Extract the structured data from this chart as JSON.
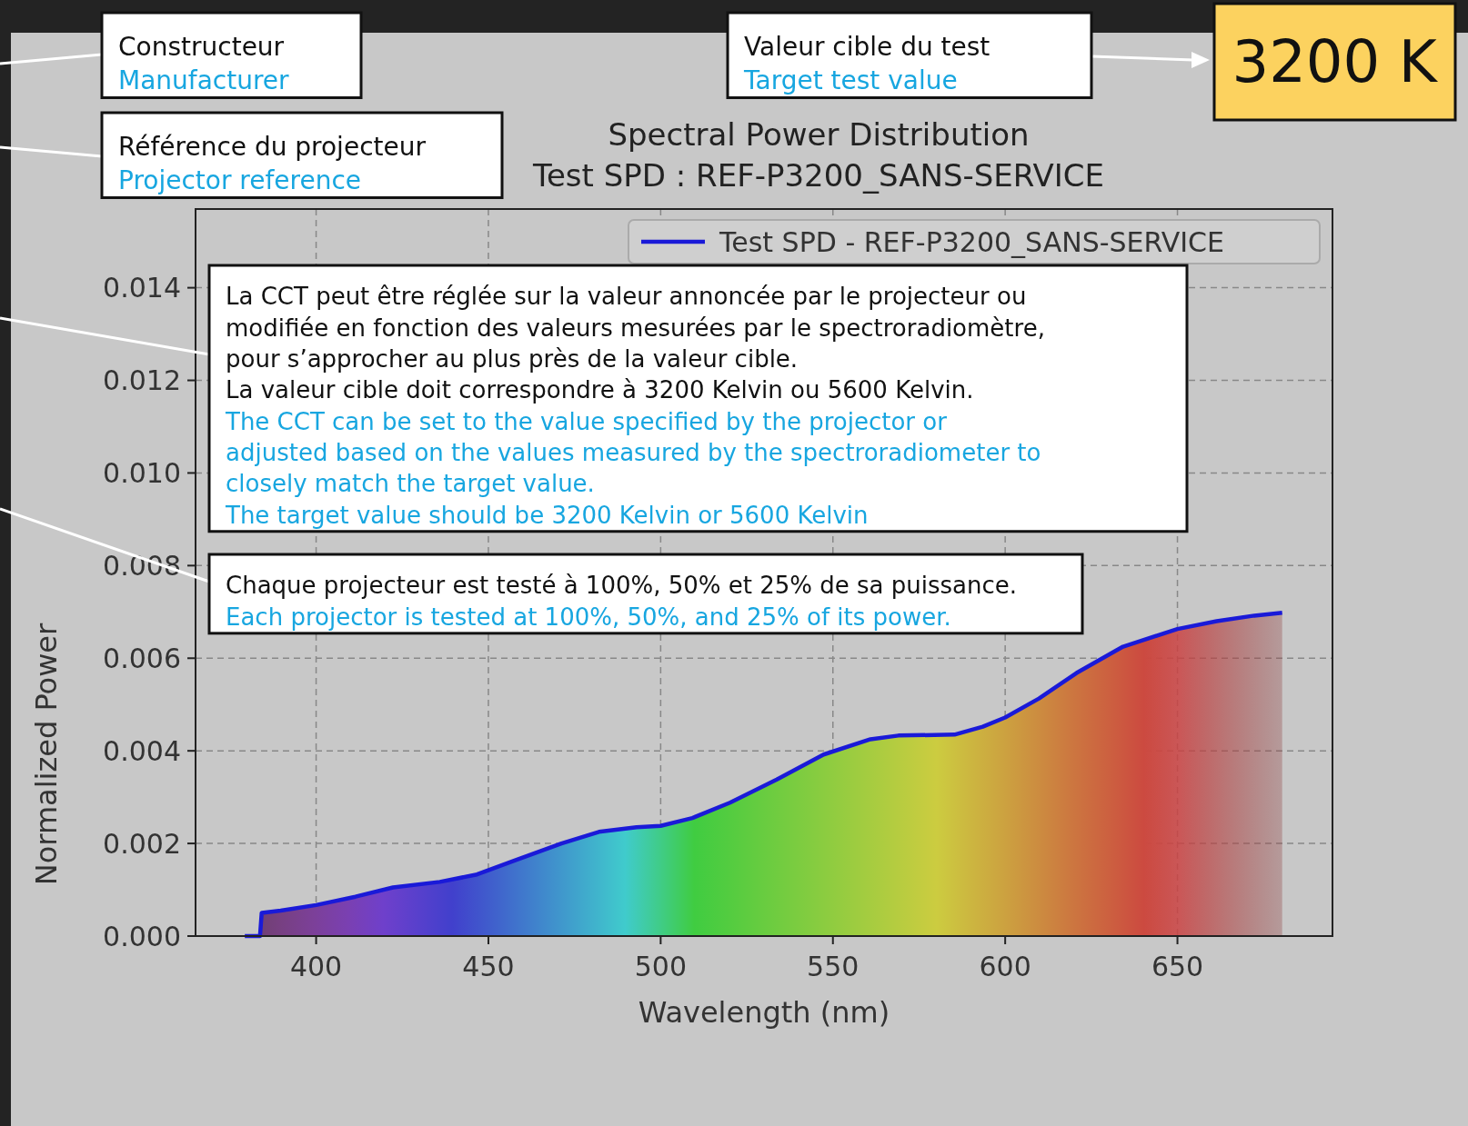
{
  "chart_data": {
    "type": "area",
    "title": "Spectral Power Distribution",
    "subtitle": "Test SPD : REF-P3200_SANS-SERVICE",
    "xlabel": "Wavelength (nm)",
    "ylabel": "Normalized Power",
    "xlim": [
      365,
      695
    ],
    "xticks": [
      400,
      450,
      500,
      550,
      600,
      650
    ],
    "ylim": [
      0,
      0.0157
    ],
    "yticks": [
      {
        "value": 0,
        "label": "0.000"
      },
      {
        "value": 0.002,
        "label": "0.002"
      },
      {
        "value": 0.004,
        "label": "0.004"
      },
      {
        "value": 0.006,
        "label": "0.006"
      },
      {
        "value": 0.008,
        "label": "0.008"
      },
      {
        "value": 0.01,
        "label": "0.010"
      },
      {
        "value": 0.012,
        "label": "0.012"
      },
      {
        "value": 0.014,
        "label": "0.014"
      }
    ],
    "grid": true,
    "legend": "top right",
    "series": [
      {
        "name": "Test SPD - REF-P3200_SANS-SERVICE",
        "color": "#1a1ad8",
        "x": [
          379.3,
          383.7,
          384.2,
          389.7,
          400,
          411.4,
          422.3,
          435.9,
          446.7,
          457.6,
          471.2,
          482.1,
          493,
          500,
          509.2,
          520.1,
          533.7,
          547.3,
          560.9,
          569,
          585.3,
          593.5,
          600,
          609.8,
          620.7,
          634.2,
          650,
          661.4,
          672.3,
          680.4
        ],
        "values": [
          0,
          0,
          0.0005,
          0.00055,
          0.00067,
          0.00085,
          0.00105,
          0.00117,
          0.00133,
          0.00163,
          0.002,
          0.00225,
          0.00235,
          0.00238,
          0.00255,
          0.00288,
          0.00338,
          0.00392,
          0.00425,
          0.00433,
          0.00435,
          0.00452,
          0.00472,
          0.00513,
          0.00568,
          0.00625,
          0.00663,
          0.0068,
          0.00692,
          0.00698
        ]
      }
    ],
    "annotations": [
      "Constructeur",
      "Manufacturer",
      "Référence du projecteur",
      "Projector reference",
      "La CCT peut être réglée sur la valeur annoncée par le projecteur ou\nmodifiée en fonction des valeurs mesurées par le spectroradiomètre,\npour s’approcher au plus près de la valeur cible.\nLa valeur cible doit correspondre à 3200 Kelvin ou 5600 Kelvin.",
      "The CCT can be set to the value specified by the projector or\nadjusted based on the values measured by the spectroradiometer to\nclosely match the target value.\nThe target value should be 3200 Kelvin or 5600 Kelvin",
      "Chaque projecteur est testé à 100%, 50% et 25% de sa puissance.",
      "Each projector is tested at 100%, 50%, and 25% of its power.",
      "Valeur cible du test",
      "Target test value",
      "3200 K"
    ]
  }
}
